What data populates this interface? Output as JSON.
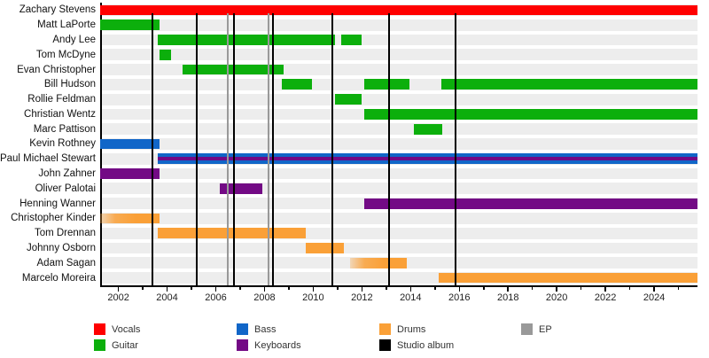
{
  "chart_data": {
    "type": "bar",
    "variant": "gantt-member-timeline",
    "grid": false,
    "legend_position": "bottom",
    "colors": {
      "vocals": "#FF0000",
      "guitar": "#0CAF0C",
      "bass": "#1166C8",
      "keyboards": "#730A85",
      "drums": "#FAA037",
      "studio_album": "#000000",
      "ep": "#999999"
    },
    "x_axis": {
      "min": 2001.25,
      "max": 2025.78,
      "tick_labels": [
        2002,
        2004,
        2006,
        2008,
        2010,
        2012,
        2014,
        2016,
        2018,
        2020,
        2022,
        2024
      ]
    },
    "members": [
      {
        "name": "Zachary Stevens",
        "segments": [
          {
            "from": 2001.25,
            "to": 2025.78,
            "roles": [
              "vocals"
            ]
          }
        ]
      },
      {
        "name": "Matt LaPorte",
        "segments": [
          {
            "from": 2001.25,
            "to": 2003.7,
            "roles": [
              "guitar"
            ]
          }
        ]
      },
      {
        "name": "Andy Lee",
        "segments": [
          {
            "from": 2003.6,
            "to": 2010.9,
            "roles": [
              "guitar"
            ]
          },
          {
            "from": 2011.15,
            "to": 2012.0,
            "roles": [
              "guitar"
            ]
          }
        ]
      },
      {
        "name": "Tom McDyne",
        "segments": [
          {
            "from": 2003.7,
            "to": 2004.15,
            "roles": [
              "guitar"
            ]
          }
        ]
      },
      {
        "name": "Evan Christopher",
        "segments": [
          {
            "from": 2004.65,
            "to": 2008.8,
            "roles": [
              "guitar"
            ]
          }
        ]
      },
      {
        "name": "Bill Hudson",
        "segments": [
          {
            "from": 2008.7,
            "to": 2009.95,
            "roles": [
              "guitar"
            ]
          },
          {
            "from": 2012.1,
            "to": 2013.95,
            "roles": [
              "guitar"
            ]
          },
          {
            "from": 2015.25,
            "to": 2025.78,
            "roles": [
              "guitar"
            ]
          }
        ]
      },
      {
        "name": "Rollie Feldman",
        "segments": [
          {
            "from": 2010.9,
            "to": 2012.0,
            "roles": [
              "guitar"
            ]
          }
        ]
      },
      {
        "name": "Christian Wentz",
        "segments": [
          {
            "from": 2012.1,
            "to": 2025.78,
            "roles": [
              "guitar"
            ]
          }
        ]
      },
      {
        "name": "Marc Pattison",
        "segments": [
          {
            "from": 2014.15,
            "to": 2015.3,
            "roles": [
              "guitar"
            ]
          }
        ]
      },
      {
        "name": "Kevin Rothney",
        "segments": [
          {
            "from": 2001.25,
            "to": 2003.7,
            "roles": [
              "bass"
            ]
          }
        ]
      },
      {
        "name": "Paul Michael Stewart",
        "segments": [
          {
            "from": 2003.6,
            "to": 2025.78,
            "roles": [
              "bass",
              "keyboards"
            ]
          }
        ]
      },
      {
        "name": "John Zahner",
        "segments": [
          {
            "from": 2001.25,
            "to": 2003.7,
            "roles": [
              "keyboards"
            ]
          }
        ]
      },
      {
        "name": "Oliver Palotai",
        "segments": [
          {
            "from": 2006.15,
            "to": 2007.9,
            "roles": [
              "keyboards"
            ]
          }
        ]
      },
      {
        "name": "Henning Wanner",
        "segments": [
          {
            "from": 2012.1,
            "to": 2025.78,
            "roles": [
              "keyboards"
            ]
          }
        ]
      },
      {
        "name": "Christopher Kinder",
        "segments": [
          {
            "from": 2001.25,
            "to": 2003.7,
            "roles": [
              "drums"
            ],
            "fade": "left"
          }
        ]
      },
      {
        "name": "Tom Drennan",
        "segments": [
          {
            "from": 2003.6,
            "to": 2009.7,
            "roles": [
              "drums"
            ]
          }
        ]
      },
      {
        "name": "Johnny Osborn",
        "segments": [
          {
            "from": 2009.7,
            "to": 2011.25,
            "roles": [
              "drums"
            ]
          }
        ]
      },
      {
        "name": "Adam Sagan",
        "segments": [
          {
            "from": 2011.5,
            "to": 2013.85,
            "roles": [
              "drums"
            ],
            "fade": "left"
          }
        ]
      },
      {
        "name": "Marcelo Moreira",
        "segments": [
          {
            "from": 2015.15,
            "to": 2025.78,
            "roles": [
              "drums"
            ]
          }
        ]
      }
    ],
    "events": {
      "studio_albums": [
        2003.4,
        2005.2,
        2006.75,
        2008.35,
        2010.8,
        2013.1,
        2015.85
      ],
      "eps": [
        2006.5,
        2008.15
      ]
    },
    "legend": {
      "items": [
        {
          "key": "vocals",
          "label": "Vocals"
        },
        {
          "key": "guitar",
          "label": "Guitar"
        },
        {
          "key": "bass",
          "label": "Bass"
        },
        {
          "key": "keyboards",
          "label": "Keyboards"
        },
        {
          "key": "drums",
          "label": "Drums"
        },
        {
          "key": "studio_album",
          "label": "Studio album"
        },
        {
          "key": "ep",
          "label": "EP"
        }
      ]
    }
  }
}
